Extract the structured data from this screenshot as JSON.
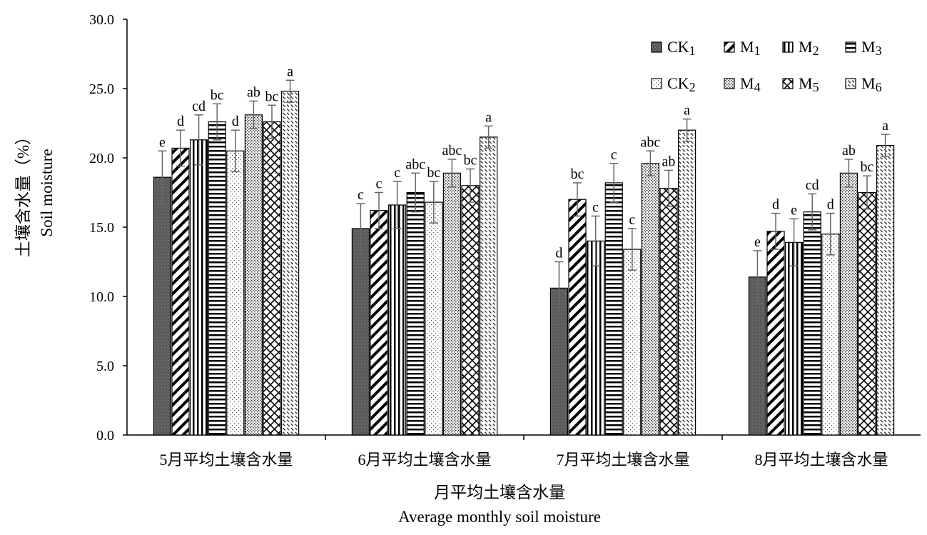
{
  "chart_data": {
    "type": "bar",
    "categories": [
      "5月平均土壤含水量",
      "6月平均土壤含水量",
      "7月平均土壤含水量",
      "8月平均土壤含水量"
    ],
    "xlabel": "月平均土壤含水量",
    "xlabel_en": "Average monthly soil moisture",
    "ylabel": "土壤含水量（%）",
    "ylabel_en": "Soil moisture",
    "ylim": [
      0,
      30
    ],
    "y_ticks": [
      "0.0",
      "5.0",
      "10.0",
      "15.0",
      "20.0",
      "25.0",
      "30.0"
    ],
    "grid": false,
    "legend_position": "top-right",
    "series": [
      {
        "name": "CK",
        "subscript": "1",
        "pattern": "solid-dark",
        "values": [
          18.6,
          14.9,
          10.6,
          11.4
        ],
        "errors": [
          1.9,
          1.8,
          1.9,
          1.9
        ],
        "letters": [
          "e",
          "c",
          "d",
          "e"
        ]
      },
      {
        "name": "M",
        "subscript": "1",
        "pattern": "diagonal",
        "values": [
          20.7,
          16.2,
          17.0,
          14.7
        ],
        "errors": [
          1.3,
          1.3,
          1.2,
          1.3
        ],
        "letters": [
          "d",
          "c",
          "bc",
          "d"
        ]
      },
      {
        "name": "M",
        "subscript": "2",
        "pattern": "vertical",
        "values": [
          21.3,
          16.6,
          14.0,
          13.9
        ],
        "errors": [
          1.8,
          1.7,
          1.8,
          1.7
        ],
        "letters": [
          "cd",
          "c",
          "c",
          "e"
        ]
      },
      {
        "name": "M",
        "subscript": "3",
        "pattern": "horizontal",
        "values": [
          22.6,
          17.5,
          18.2,
          16.1
        ],
        "errors": [
          1.3,
          1.4,
          1.4,
          1.3
        ],
        "letters": [
          "bc",
          "abc",
          "c",
          "cd"
        ]
      },
      {
        "name": "CK",
        "subscript": "2",
        "pattern": "dots",
        "values": [
          20.5,
          16.8,
          13.4,
          14.5
        ],
        "errors": [
          1.5,
          1.5,
          1.5,
          1.5
        ],
        "letters": [
          "d",
          "bc",
          "c",
          "d"
        ]
      },
      {
        "name": "M",
        "subscript": "4",
        "pattern": "dense-dots",
        "values": [
          23.1,
          18.9,
          19.6,
          18.9
        ],
        "errors": [
          1.0,
          1.0,
          0.9,
          1.0
        ],
        "letters": [
          "ab",
          "abc",
          "abc",
          "ab"
        ]
      },
      {
        "name": "M",
        "subscript": "5",
        "pattern": "crosshatch",
        "values": [
          22.6,
          18.0,
          17.8,
          17.5
        ],
        "errors": [
          1.2,
          1.2,
          1.3,
          1.2
        ],
        "letters": [
          "bc",
          "bc",
          "ab",
          "bc"
        ]
      },
      {
        "name": "M",
        "subscript": "6",
        "pattern": "dashed-diagonal",
        "values": [
          24.8,
          21.5,
          22.0,
          20.9
        ],
        "errors": [
          0.8,
          0.8,
          0.8,
          0.8
        ],
        "letters": [
          "a",
          "a",
          "a",
          "a"
        ]
      }
    ]
  }
}
